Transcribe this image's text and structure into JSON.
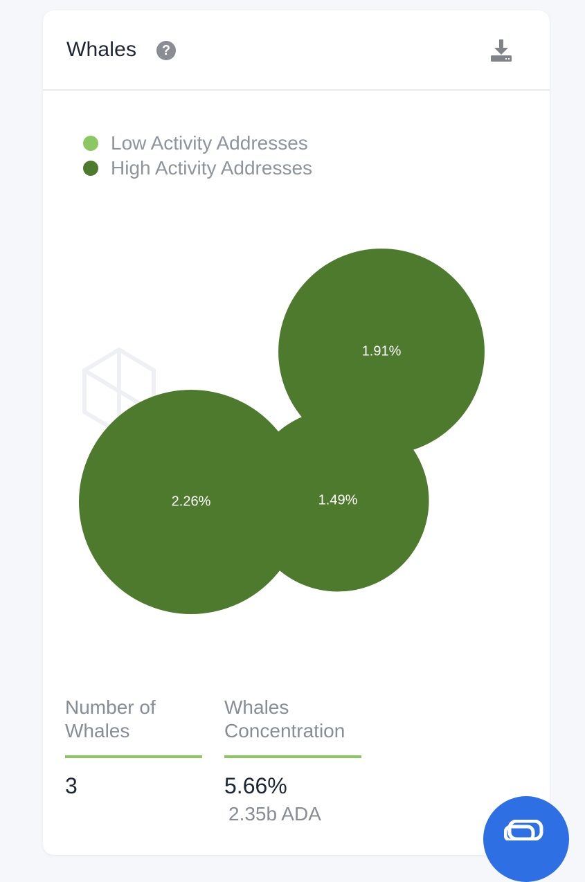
{
  "card": {
    "title": "Whales"
  },
  "icons": {
    "help": "help-circle-icon",
    "download": "download-icon",
    "chat": "chat-icon"
  },
  "legend": [
    {
      "label": "Low Activity Addresses",
      "color": "#8cc861"
    },
    {
      "label": "High Activity Addresses",
      "color": "#4e7a2e"
    }
  ],
  "chart_data": {
    "type": "bubble",
    "series": [
      {
        "category": "High Activity Addresses",
        "label": "2.26%",
        "value": 2.26,
        "color": "#4e7a2e"
      },
      {
        "category": "High Activity Addresses",
        "label": "1.49%",
        "value": 1.49,
        "color": "#4e7a2e"
      },
      {
        "category": "High Activity Addresses",
        "label": "1.91%",
        "value": 1.91,
        "color": "#4e7a2e"
      }
    ],
    "legend_position": "top-left"
  },
  "stats": {
    "number_of_whales": {
      "label": "Number of Whales",
      "value": "3"
    },
    "concentration": {
      "label": "Whales Concentration",
      "value": "5.66%",
      "sub": "2.35b ADA"
    }
  },
  "colors": {
    "accent_bar": "#8cc861",
    "fab": "#2f6fe4"
  }
}
